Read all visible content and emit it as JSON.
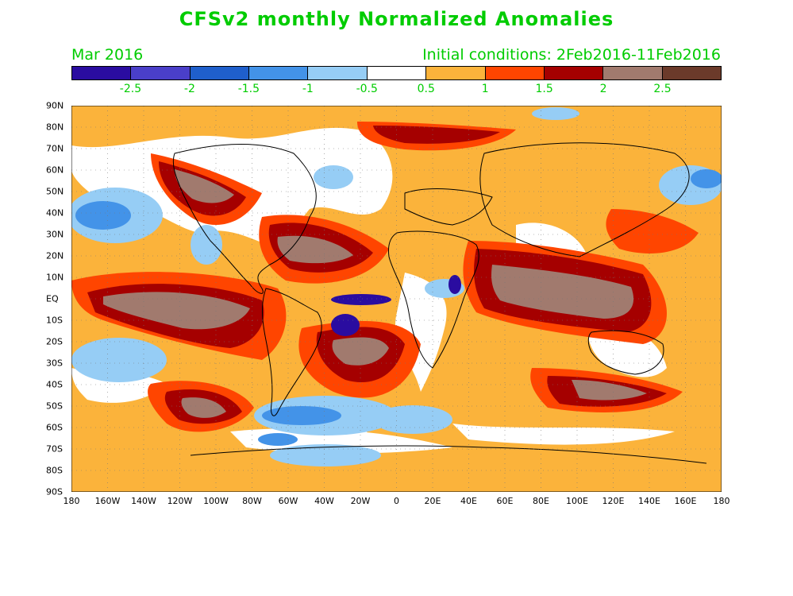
{
  "title": "CFSv2 monthly Normalized Anomalies",
  "valid_month": "Mar 2016",
  "init_conditions": "Initial conditions: 2Feb2016-11Feb2016",
  "colorbar": {
    "colors": [
      "#2a0ca0",
      "#4a3fc9",
      "#1f5fcc",
      "#4393e8",
      "#96cdf5",
      "#ffffff",
      "#fbb33b",
      "#ff4500",
      "#a50000",
      "#a17a6e",
      "#6b3a2a"
    ],
    "labels": [
      "-2.5",
      "-2",
      "-1.5",
      "-1",
      "-0.5",
      "0.5",
      "1",
      "1.5",
      "2",
      "2.5"
    ]
  },
  "lat_labels": [
    "90N",
    "80N",
    "70N",
    "60N",
    "50N",
    "40N",
    "30N",
    "20N",
    "10N",
    "EQ",
    "10S",
    "20S",
    "30S",
    "40S",
    "50S",
    "60S",
    "70S",
    "80S",
    "90S"
  ],
  "lon_labels": [
    "180",
    "160W",
    "140W",
    "120W",
    "100W",
    "80W",
    "60W",
    "40W",
    "20W",
    "0",
    "20E",
    "40E",
    "60E",
    "80E",
    "100E",
    "120E",
    "140E",
    "160E",
    "180"
  ]
}
